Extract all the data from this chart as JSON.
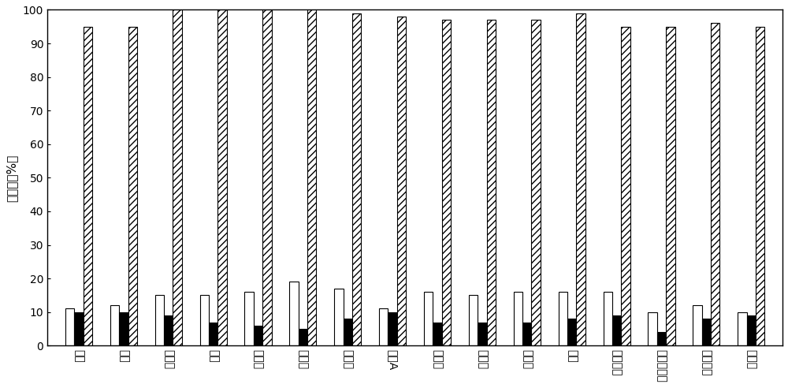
{
  "categories": [
    "苯酚",
    "苯胺",
    "三氯生",
    "雌酮",
    "雌二醇",
    "雌三醇",
    "壬基酚",
    "双酚A",
    "四环素",
    "金霉素",
    "土霉素",
    "头孢",
    "阿莫西林",
    "磺胺异恶唠",
    "双氯灭痛",
    "蔐去津"
  ],
  "white_bars": [
    11,
    12,
    15,
    15,
    16,
    19,
    17,
    11,
    16,
    15,
    16,
    16,
    16,
    10,
    12,
    10
  ],
  "black_bars": [
    10,
    10,
    9,
    7,
    6,
    5,
    8,
    10,
    7,
    7,
    7,
    8,
    9,
    4,
    8,
    9
  ],
  "hatched_bars": [
    95,
    95,
    100,
    100,
    100,
    100,
    99,
    98,
    97,
    97,
    97,
    99,
    95,
    95,
    96,
    95
  ],
  "ylabel": "去除率（%）",
  "ylim": [
    0,
    100
  ],
  "yticks": [
    0,
    10,
    20,
    30,
    40,
    50,
    60,
    70,
    80,
    90,
    100
  ],
  "bar_width": 0.2,
  "background_color": "#ffffff",
  "tick_fontsize": 10,
  "ylabel_fontsize": 11
}
